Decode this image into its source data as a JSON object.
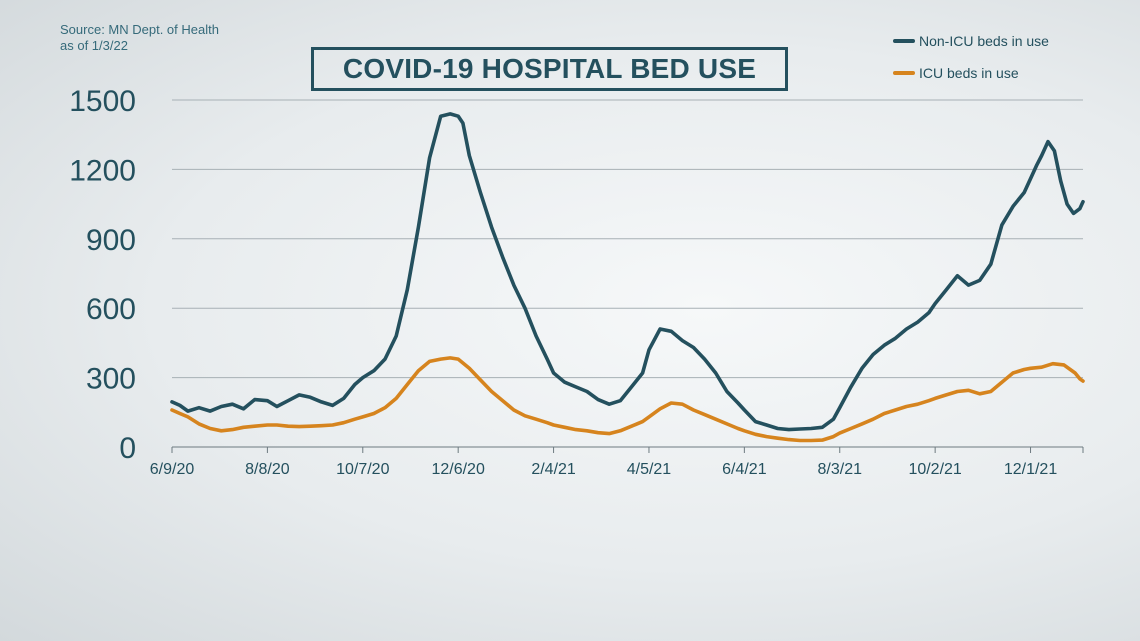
{
  "source_lines": [
    "Source: MN Dept. of Health",
    "as of 1/3/22"
  ],
  "chart_data": {
    "type": "line",
    "title": "COVID-19 HOSPITAL BED USE",
    "xlabel": "",
    "ylabel": "",
    "ylim": [
      0,
      1500
    ],
    "yticks": [
      0,
      300,
      600,
      900,
      1200,
      1500
    ],
    "xtick_labels": [
      "6/9/20",
      "8/8/20",
      "10/7/20",
      "12/6/20",
      "2/4/21",
      "4/5/21",
      "6/4/21",
      "8/3/21",
      "10/2/21",
      "12/1/21"
    ],
    "x_range": [
      "6/9/20",
      "1/3/22"
    ],
    "grid": "horizontal",
    "legend_position": "top-right",
    "series": [
      {
        "name": "Non-ICU beds in use",
        "color": "#24505e",
        "points": [
          [
            "6/9/20",
            195
          ],
          [
            "6/14/20",
            180
          ],
          [
            "6/19/20",
            155
          ],
          [
            "6/26/20",
            170
          ],
          [
            "7/3/20",
            155
          ],
          [
            "7/10/20",
            175
          ],
          [
            "7/17/20",
            185
          ],
          [
            "7/24/20",
            165
          ],
          [
            "7/31/20",
            205
          ],
          [
            "8/8/20",
            200
          ],
          [
            "8/14/20",
            175
          ],
          [
            "8/21/20",
            200
          ],
          [
            "8/28/20",
            225
          ],
          [
            "9/4/20",
            215
          ],
          [
            "9/11/20",
            195
          ],
          [
            "9/18/20",
            180
          ],
          [
            "9/25/20",
            210
          ],
          [
            "10/2/20",
            270
          ],
          [
            "10/7/20",
            300
          ],
          [
            "10/14/20",
            330
          ],
          [
            "10/21/20",
            380
          ],
          [
            "10/28/20",
            480
          ],
          [
            "11/4/20",
            680
          ],
          [
            "11/11/20",
            950
          ],
          [
            "11/18/20",
            1250
          ],
          [
            "11/25/20",
            1430
          ],
          [
            "12/1/20",
            1440
          ],
          [
            "12/6/20",
            1430
          ],
          [
            "12/9/20",
            1400
          ],
          [
            "12/13/20",
            1260
          ],
          [
            "12/20/20",
            1100
          ],
          [
            "12/27/20",
            950
          ],
          [
            "1/3/21",
            820
          ],
          [
            "1/10/21",
            700
          ],
          [
            "1/17/21",
            600
          ],
          [
            "1/24/21",
            480
          ],
          [
            "1/31/21",
            380
          ],
          [
            "2/4/21",
            320
          ],
          [
            "2/11/21",
            280
          ],
          [
            "2/18/21",
            260
          ],
          [
            "2/25/21",
            240
          ],
          [
            "3/4/21",
            205
          ],
          [
            "3/11/21",
            185
          ],
          [
            "3/18/21",
            200
          ],
          [
            "3/25/21",
            260
          ],
          [
            "4/1/21",
            320
          ],
          [
            "4/5/21",
            420
          ],
          [
            "4/12/21",
            510
          ],
          [
            "4/19/21",
            500
          ],
          [
            "4/26/21",
            460
          ],
          [
            "5/3/21",
            430
          ],
          [
            "5/10/21",
            380
          ],
          [
            "5/17/21",
            320
          ],
          [
            "5/24/21",
            240
          ],
          [
            "5/31/21",
            190
          ],
          [
            "6/4/21",
            160
          ],
          [
            "6/11/21",
            110
          ],
          [
            "6/18/21",
            95
          ],
          [
            "6/25/21",
            80
          ],
          [
            "7/2/21",
            75
          ],
          [
            "7/9/21",
            78
          ],
          [
            "7/16/21",
            80
          ],
          [
            "7/23/21",
            85
          ],
          [
            "7/30/21",
            120
          ],
          [
            "8/3/21",
            170
          ],
          [
            "8/10/21",
            260
          ],
          [
            "8/17/21",
            340
          ],
          [
            "8/24/21",
            400
          ],
          [
            "8/31/21",
            440
          ],
          [
            "9/7/21",
            470
          ],
          [
            "9/14/21",
            510
          ],
          [
            "9/21/21",
            540
          ],
          [
            "9/28/21",
            580
          ],
          [
            "10/2/21",
            620
          ],
          [
            "10/9/21",
            680
          ],
          [
            "10/16/21",
            740
          ],
          [
            "10/23/21",
            700
          ],
          [
            "10/30/21",
            720
          ],
          [
            "11/6/21",
            790
          ],
          [
            "11/13/21",
            960
          ],
          [
            "11/20/21",
            1040
          ],
          [
            "11/27/21",
            1100
          ],
          [
            "12/1/21",
            1160
          ],
          [
            "12/5/21",
            1220
          ],
          [
            "12/8/21",
            1260
          ],
          [
            "12/12/21",
            1320
          ],
          [
            "12/16/21",
            1280
          ],
          [
            "12/20/21",
            1150
          ],
          [
            "12/24/21",
            1050
          ],
          [
            "12/28/21",
            1010
          ],
          [
            "1/1/22",
            1030
          ],
          [
            "1/3/22",
            1060
          ]
        ]
      },
      {
        "name": "ICU beds in use",
        "color": "#d6841e",
        "points": [
          [
            "6/9/20",
            160
          ],
          [
            "6/14/20",
            145
          ],
          [
            "6/19/20",
            130
          ],
          [
            "6/26/20",
            100
          ],
          [
            "7/3/20",
            80
          ],
          [
            "7/10/20",
            70
          ],
          [
            "7/17/20",
            75
          ],
          [
            "7/24/20",
            85
          ],
          [
            "7/31/20",
            90
          ],
          [
            "8/8/20",
            95
          ],
          [
            "8/14/20",
            95
          ],
          [
            "8/21/20",
            90
          ],
          [
            "8/28/20",
            88
          ],
          [
            "9/4/20",
            90
          ],
          [
            "9/11/20",
            92
          ],
          [
            "9/18/20",
            95
          ],
          [
            "9/25/20",
            105
          ],
          [
            "10/2/20",
            120
          ],
          [
            "10/7/20",
            130
          ],
          [
            "10/14/20",
            145
          ],
          [
            "10/21/20",
            170
          ],
          [
            "10/28/20",
            210
          ],
          [
            "11/4/20",
            270
          ],
          [
            "11/11/20",
            330
          ],
          [
            "11/18/20",
            370
          ],
          [
            "11/25/20",
            380
          ],
          [
            "12/1/20",
            385
          ],
          [
            "12/6/20",
            380
          ],
          [
            "12/13/20",
            340
          ],
          [
            "12/20/20",
            290
          ],
          [
            "12/27/20",
            240
          ],
          [
            "1/3/21",
            200
          ],
          [
            "1/10/21",
            160
          ],
          [
            "1/17/21",
            135
          ],
          [
            "1/24/21",
            120
          ],
          [
            "1/31/21",
            105
          ],
          [
            "2/4/21",
            95
          ],
          [
            "2/11/21",
            85
          ],
          [
            "2/18/21",
            75
          ],
          [
            "2/25/21",
            70
          ],
          [
            "3/4/21",
            62
          ],
          [
            "3/11/21",
            58
          ],
          [
            "3/18/21",
            70
          ],
          [
            "3/25/21",
            90
          ],
          [
            "4/1/21",
            110
          ],
          [
            "4/5/21",
            130
          ],
          [
            "4/12/21",
            165
          ],
          [
            "4/19/21",
            190
          ],
          [
            "4/26/21",
            185
          ],
          [
            "5/3/21",
            160
          ],
          [
            "5/10/21",
            140
          ],
          [
            "5/17/21",
            120
          ],
          [
            "5/24/21",
            100
          ],
          [
            "5/31/21",
            80
          ],
          [
            "6/4/21",
            70
          ],
          [
            "6/11/21",
            55
          ],
          [
            "6/18/21",
            45
          ],
          [
            "6/25/21",
            38
          ],
          [
            "7/2/21",
            32
          ],
          [
            "7/9/21",
            28
          ],
          [
            "7/16/21",
            28
          ],
          [
            "7/23/21",
            30
          ],
          [
            "7/30/21",
            45
          ],
          [
            "8/3/21",
            60
          ],
          [
            "8/10/21",
            80
          ],
          [
            "8/17/21",
            100
          ],
          [
            "8/24/21",
            120
          ],
          [
            "8/31/21",
            145
          ],
          [
            "9/7/21",
            160
          ],
          [
            "9/14/21",
            175
          ],
          [
            "9/21/21",
            185
          ],
          [
            "9/28/21",
            200
          ],
          [
            "10/2/21",
            210
          ],
          [
            "10/9/21",
            225
          ],
          [
            "10/16/21",
            240
          ],
          [
            "10/23/21",
            245
          ],
          [
            "10/30/21",
            230
          ],
          [
            "11/6/21",
            240
          ],
          [
            "11/13/21",
            280
          ],
          [
            "11/20/21",
            320
          ],
          [
            "11/27/21",
            335
          ],
          [
            "12/1/21",
            340
          ],
          [
            "12/8/21",
            345
          ],
          [
            "12/15/21",
            360
          ],
          [
            "12/22/21",
            355
          ],
          [
            "12/29/21",
            320
          ],
          [
            "1/1/22",
            295
          ],
          [
            "1/3/22",
            285
          ]
        ]
      }
    ]
  }
}
